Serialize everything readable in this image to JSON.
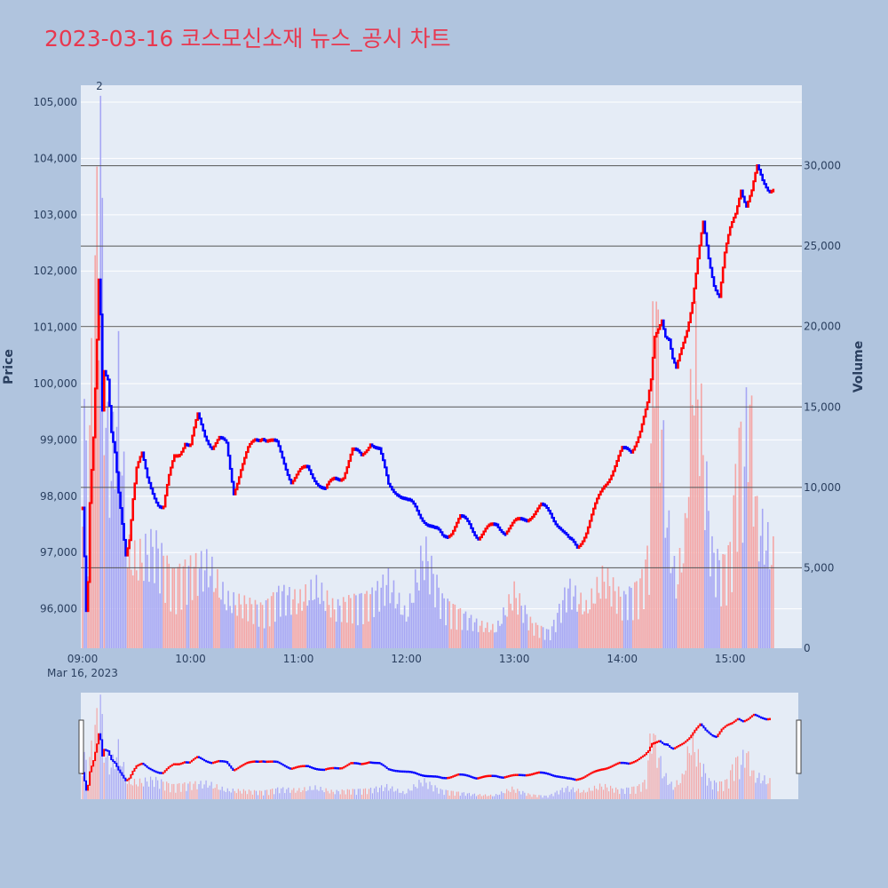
{
  "title": "2023-03-16 코스모신소재 뉴스_공시 차트",
  "colors": {
    "up": "#ff0000",
    "down": "#0000ff",
    "vol_up": "#f4a6a6",
    "vol_down": "#a6a6f4",
    "plot_bg": "#e5ecf6",
    "page_bg": "#b0c4de",
    "hline": "#555555"
  },
  "chart_data": {
    "type": "candlestick",
    "title": "2023-03-16 코스모신소재 뉴스_공시 차트",
    "xlabel": "",
    "ylabel": "Price",
    "y2label": "Volume",
    "x_range": [
      "09:00",
      "15:30"
    ],
    "x_ticks": [
      "09:00",
      "10:00",
      "11:00",
      "12:00",
      "13:00",
      "14:00",
      "15:00"
    ],
    "x_date_label": "Mar 16, 2023",
    "price_range": [
      95300,
      105300
    ],
    "price_ticks": [
      "96,000",
      "97,000",
      "98,000",
      "99,000",
      "100,000",
      "101,000",
      "102,000",
      "103,000",
      "104,000",
      "105,000"
    ],
    "volume_range": [
      0,
      35000
    ],
    "volume_ticks": [
      "0",
      "5,000",
      "10,000",
      "15,000",
      "20,000",
      "25,000",
      "30,000"
    ],
    "volume_hlines": [
      5000,
      10000,
      15000,
      20000,
      25000,
      30000
    ],
    "annotation": "2",
    "price_path": [
      [
        "09:00",
        97800
      ],
      [
        "09:01",
        96900
      ],
      [
        "09:02",
        95900
      ],
      [
        "09:03",
        96400
      ],
      [
        "09:04",
        97800
      ],
      [
        "09:06",
        99000
      ],
      [
        "09:08",
        100800
      ],
      [
        "09:09",
        101900
      ],
      [
        "09:10",
        101300
      ],
      [
        "09:11",
        99600
      ],
      [
        "09:12",
        100300
      ],
      [
        "09:14",
        100100
      ],
      [
        "09:16",
        99100
      ],
      [
        "09:18",
        98700
      ],
      [
        "09:20",
        98000
      ],
      [
        "09:22",
        97500
      ],
      [
        "09:24",
        97000
      ],
      [
        "09:26",
        97300
      ],
      [
        "09:28",
        98000
      ],
      [
        "09:30",
        98500
      ],
      [
        "09:33",
        98700
      ],
      [
        "09:36",
        98300
      ],
      [
        "09:39",
        98100
      ],
      [
        "09:42",
        97900
      ],
      [
        "09:45",
        97800
      ],
      [
        "09:48",
        98300
      ],
      [
        "09:51",
        98700
      ],
      [
        "09:54",
        98800
      ],
      [
        "09:57",
        99000
      ],
      [
        "10:00",
        98900
      ],
      [
        "10:04",
        99400
      ],
      [
        "10:08",
        99100
      ],
      [
        "10:12",
        98900
      ],
      [
        "10:16",
        99000
      ],
      [
        "10:20",
        98900
      ],
      [
        "10:24",
        98100
      ],
      [
        "10:28",
        98500
      ],
      [
        "10:32",
        98800
      ],
      [
        "10:36",
        99000
      ],
      [
        "10:40",
        99100
      ],
      [
        "10:44",
        99000
      ],
      [
        "10:48",
        98900
      ],
      [
        "10:52",
        98600
      ],
      [
        "10:56",
        98300
      ],
      [
        "11:00",
        98400
      ],
      [
        "11:05",
        98500
      ],
      [
        "11:10",
        98300
      ],
      [
        "11:15",
        98100
      ],
      [
        "11:20",
        98300
      ],
      [
        "11:25",
        98400
      ],
      [
        "11:30",
        98800
      ],
      [
        "11:35",
        98700
      ],
      [
        "11:40",
        99000
      ],
      [
        "11:45",
        98800
      ],
      [
        "11:50",
        98200
      ],
      [
        "11:55",
        98100
      ],
      [
        "12:00",
        97900
      ],
      [
        "12:05",
        97800
      ],
      [
        "12:10",
        97600
      ],
      [
        "12:15",
        97400
      ],
      [
        "12:20",
        97300
      ],
      [
        "12:25",
        97400
      ],
      [
        "12:30",
        97600
      ],
      [
        "12:35",
        97500
      ],
      [
        "12:40",
        97300
      ],
      [
        "12:45",
        97400
      ],
      [
        "12:50",
        97500
      ],
      [
        "12:55",
        97400
      ],
      [
        "13:00",
        97500
      ],
      [
        "13:05",
        97600
      ],
      [
        "13:10",
        97700
      ],
      [
        "13:15",
        97800
      ],
      [
        "13:20",
        97700
      ],
      [
        "13:25",
        97500
      ],
      [
        "13:30",
        97200
      ],
      [
        "13:35",
        97100
      ],
      [
        "13:40",
        97400
      ],
      [
        "13:45",
        97800
      ],
      [
        "13:50",
        98200
      ],
      [
        "13:55",
        98500
      ],
      [
        "14:00",
        98800
      ],
      [
        "14:05",
        98800
      ],
      [
        "14:10",
        99200
      ],
      [
        "14:14",
        99600
      ],
      [
        "14:16",
        100000
      ],
      [
        "14:18",
        100800
      ],
      [
        "14:20",
        101000
      ],
      [
        "14:22",
        101200
      ],
      [
        "14:24",
        100900
      ],
      [
        "14:26",
        100800
      ],
      [
        "14:28",
        100400
      ],
      [
        "14:30",
        100200
      ],
      [
        "14:33",
        100600
      ],
      [
        "14:36",
        101000
      ],
      [
        "14:39",
        101500
      ],
      [
        "14:42",
        102200
      ],
      [
        "14:45",
        102800
      ],
      [
        "14:48",
        102200
      ],
      [
        "14:51",
        101800
      ],
      [
        "14:54",
        101600
      ],
      [
        "14:57",
        102300
      ],
      [
        "15:00",
        102700
      ],
      [
        "15:03",
        103000
      ],
      [
        "15:06",
        103500
      ],
      [
        "15:09",
        103200
      ],
      [
        "15:12",
        103400
      ],
      [
        "15:15",
        103800
      ],
      [
        "15:18",
        103600
      ],
      [
        "15:21",
        103500
      ],
      [
        "15:24",
        103500
      ]
    ],
    "volume_series": [
      [
        "09:00",
        16800
      ],
      [
        "09:03",
        9000
      ],
      [
        "09:06",
        21000
      ],
      [
        "09:08",
        26000
      ],
      [
        "09:09",
        30500
      ],
      [
        "09:10",
        34000
      ],
      [
        "09:11",
        24000
      ],
      [
        "09:13",
        14000
      ],
      [
        "09:16",
        11000
      ],
      [
        "09:20",
        16500
      ],
      [
        "09:25",
        6000
      ],
      [
        "09:30",
        5500
      ],
      [
        "09:40",
        6500
      ],
      [
        "09:50",
        4500
      ],
      [
        "10:00",
        5000
      ],
      [
        "10:10",
        5200
      ],
      [
        "10:20",
        3000
      ],
      [
        "10:30",
        2800
      ],
      [
        "10:40",
        2500
      ],
      [
        "10:50",
        3500
      ],
      [
        "11:00",
        3000
      ],
      [
        "11:10",
        3800
      ],
      [
        "11:20",
        2500
      ],
      [
        "11:30",
        3000
      ],
      [
        "11:40",
        3200
      ],
      [
        "11:50",
        4200
      ],
      [
        "12:00",
        2000
      ],
      [
        "12:10",
        6200
      ],
      [
        "12:20",
        3000
      ],
      [
        "12:30",
        2200
      ],
      [
        "12:40",
        1500
      ],
      [
        "12:50",
        1200
      ],
      [
        "13:00",
        3500
      ],
      [
        "13:10",
        1500
      ],
      [
        "13:20",
        1000
      ],
      [
        "13:30",
        3800
      ],
      [
        "13:40",
        2500
      ],
      [
        "13:50",
        4500
      ],
      [
        "14:00",
        3000
      ],
      [
        "14:10",
        4000
      ],
      [
        "14:15",
        6000
      ],
      [
        "14:18",
        25000
      ],
      [
        "14:20",
        18000
      ],
      [
        "14:25",
        8000
      ],
      [
        "14:30",
        4000
      ],
      [
        "14:35",
        7000
      ],
      [
        "14:40",
        19500
      ],
      [
        "14:45",
        12500
      ],
      [
        "14:50",
        6000
      ],
      [
        "14:55",
        5000
      ],
      [
        "15:00",
        6000
      ],
      [
        "15:05",
        13000
      ],
      [
        "15:08",
        11000
      ],
      [
        "15:10",
        17000
      ],
      [
        "15:15",
        8000
      ],
      [
        "15:20",
        6800
      ],
      [
        "15:24",
        5800
      ]
    ]
  }
}
